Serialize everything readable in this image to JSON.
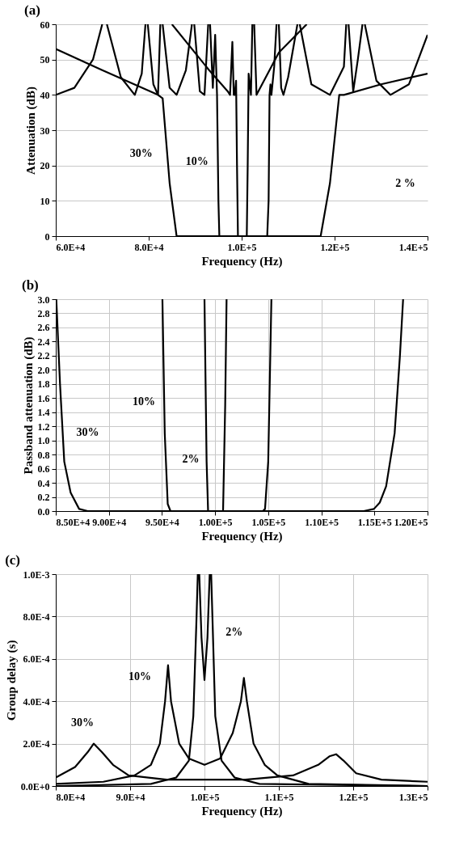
{
  "chart_data": [
    {
      "type": "line",
      "title": "(a)",
      "xlabel": "Frequency (Hz)",
      "ylabel": "Attenuation (dB)",
      "xlim": [
        60000,
        140000
      ],
      "ylim": [
        0,
        60
      ],
      "xticks": [
        {
          "value": 60000,
          "label": "6.0E+4"
        },
        {
          "value": 80000,
          "label": "8.0E+4"
        },
        {
          "value": 100000,
          "label": "1.0E+5"
        },
        {
          "value": 120000,
          "label": "1.2E+5"
        },
        {
          "value": 140000,
          "label": "1.4E+5"
        }
      ],
      "yticks": [
        0,
        10,
        20,
        30,
        40,
        50,
        60
      ],
      "grid": "y",
      "series": [
        {
          "color": "#000000",
          "x": [
            60000,
            70000,
            82000,
            83000,
            84500,
            86000,
            117000,
            119000,
            121000,
            122000,
            130000,
            140000
          ],
          "values": [
            53,
            47,
            40,
            39,
            15,
            0,
            0,
            15,
            40,
            40,
            43,
            46
          ]
        },
        {
          "color": "#000000",
          "x": [
            60000,
            64000,
            68000,
            70000,
            70500,
            71000,
            74000,
            77000,
            78500,
            79300,
            79500,
            79800,
            81000,
            82000,
            82500,
            82700,
            83000,
            84500,
            86000,
            88000,
            89300,
            89500,
            89800,
            91000,
            92000,
            92800,
            93000,
            93200,
            93800,
            94300,
            94700,
            95000,
            95200,
            105500,
            105800,
            106000,
            106200,
            106400,
            107000,
            107500,
            107700,
            108000,
            108500,
            109000,
            110000,
            112000,
            112200,
            112500,
            115000,
            119000,
            122000,
            122500,
            122700,
            123000,
            124000,
            125000,
            126000,
            126200,
            126500,
            129000,
            132000,
            136000,
            140000
          ],
          "values": [
            40,
            42,
            50,
            60,
            null,
            60,
            45,
            40,
            46,
            60,
            null,
            60,
            43,
            40,
            60,
            null,
            60,
            42,
            40,
            47,
            60,
            null,
            60,
            41,
            40,
            60,
            null,
            60,
            42,
            57,
            40,
            10,
            0,
            0,
            10,
            40,
            43,
            40,
            48,
            60,
            null,
            60,
            42,
            40,
            45,
            60,
            null,
            60,
            43,
            40,
            48,
            60,
            null,
            60,
            41,
            50,
            60,
            null,
            60,
            44,
            40,
            43,
            57
          ]
        },
        {
          "color": "#000000",
          "x": [
            85000,
            93000,
            97000,
            97500,
            98000,
            98300,
            98500,
            98800,
            99000,
            99200,
            101100,
            101300,
            101500,
            102000,
            102300,
            102500,
            102700,
            103200,
            108000,
            114000
          ],
          "values": [
            60,
            47,
            41,
            40,
            55,
            40,
            40,
            44,
            20,
            0,
            0,
            20,
            46,
            40,
            60,
            null,
            60,
            40,
            52,
            60
          ]
        }
      ],
      "annotations": [
        "30%",
        "10%",
        "2 %"
      ]
    },
    {
      "type": "line",
      "title": "(b)",
      "xlabel": "Frequency (Hz)",
      "ylabel": "Passband attenuation (dB)",
      "xlim": [
        85000,
        120000
      ],
      "ylim": [
        0,
        3
      ],
      "xticks": [
        {
          "value": 85000,
          "label": "8.50E+4"
        },
        {
          "value": 90000,
          "label": "9.00E+4"
        },
        {
          "value": 95000,
          "label": "9.50E+4"
        },
        {
          "value": 100000,
          "label": "1.00E+5"
        },
        {
          "value": 105000,
          "label": "1.05E+5"
        },
        {
          "value": 110000,
          "label": "1.10E+5"
        },
        {
          "value": 115000,
          "label": "1.15E+5"
        },
        {
          "value": 120000,
          "label": "1.20E+5"
        }
      ],
      "yticks": [
        {
          "value": 0,
          "label": "0.0"
        },
        0.2,
        0.4,
        0.6,
        0.8,
        {
          "value": 1,
          "label": "1.0"
        },
        1.2,
        1.4,
        1.6,
        1.8,
        {
          "value": 2,
          "label": "2.0"
        },
        2.2,
        2.4,
        2.6,
        2.8,
        {
          "value": 3,
          "label": "3.0"
        }
      ],
      "grid": true,
      "series": [
        {
          "color": "#000000",
          "x": [
            85050,
            85400,
            85800,
            86400,
            87200,
            88000,
            100000,
            114000,
            114950,
            115500,
            116100,
            116900,
            117400,
            117700
          ],
          "values": [
            3.0,
            1.8,
            0.7,
            0.26,
            0.03,
            0,
            0,
            0,
            0.03,
            0.12,
            0.35,
            1.1,
            2.2,
            3.0
          ]
        },
        {
          "color": "#000000",
          "x": [
            95040,
            95260,
            95540,
            95800,
            104500,
            104700,
            105000,
            105300
          ],
          "values": [
            3.0,
            1.1,
            0.1,
            0,
            0,
            0.03,
            0.7,
            3.0
          ]
        },
        {
          "color": "#000000",
          "x": [
            99000,
            99200,
            99340,
            100750,
            100950,
            101080
          ],
          "values": [
            3.0,
            0.7,
            0,
            0,
            1.5,
            3.0
          ]
        }
      ],
      "annotations": [
        "30%",
        "10%",
        "2%"
      ]
    },
    {
      "type": "line",
      "title": "(c)",
      "xlabel": "Frequency (Hz)",
      "ylabel": "Group delay (s)",
      "xlim": [
        80000,
        130000
      ],
      "ylim": [
        0,
        0.001
      ],
      "xticks": [
        {
          "value": 80000,
          "label": "8.0E+4"
        },
        {
          "value": 90000,
          "label": "9.0E+4"
        },
        {
          "value": 100000,
          "label": "1.0E+5"
        },
        {
          "value": 110000,
          "label": "1.1E+5"
        },
        {
          "value": 120000,
          "label": "1.2E+5"
        },
        {
          "value": 130000,
          "label": "1.3E+5"
        }
      ],
      "yticks": [
        {
          "value": 0,
          "label": "0.0E+0"
        },
        {
          "value": 0.0002,
          "label": "2.0E-4"
        },
        {
          "value": 0.0004,
          "label": "4.0E-4"
        },
        {
          "value": 0.0006,
          "label": "6.0E-4"
        },
        {
          "value": 0.0008,
          "label": "8.0E-4"
        },
        {
          "value": 0.001,
          "label": "1.0E-3"
        }
      ],
      "grid": true,
      "series": [
        {
          "color": "#000000",
          "x": [
            80000,
            82600,
            84300,
            85100,
            86200,
            87700,
            89800,
            94900,
            100000,
            105500,
            111900,
            115300,
            116800,
            117700,
            118700,
            120400,
            123800,
            130000
          ],
          "values": [
            4e-05,
            9e-05,
            0.00016,
            0.0002,
            0.00016,
            0.0001,
            5e-05,
            3e-05,
            3e-05,
            3e-05,
            5e-05,
            0.0001,
            0.00014,
            0.00015,
            0.00012,
            6e-05,
            3e-05,
            2e-05
          ]
        },
        {
          "color": "#000000",
          "x": [
            80000,
            86400,
            90600,
            92800,
            94000,
            94700,
            95100,
            95500,
            96600,
            97900,
            100000,
            102100,
            103800,
            104900,
            105300,
            105700,
            106600,
            108100,
            109800,
            114000,
            130000
          ],
          "values": [
            1e-05,
            2e-05,
            5e-05,
            0.0001,
            0.0002,
            0.0004,
            0.00057,
            0.0004,
            0.0002,
            0.00013,
            0.0001,
            0.00013,
            0.00025,
            0.0004,
            0.00051,
            0.0004,
            0.0002,
            0.0001,
            5e-05,
            1e-05,
            0
          ]
        },
        {
          "color": "#000000",
          "x": [
            80000,
            92800,
            96200,
            97900,
            98500,
            98900,
            99100,
            99200,
            99300,
            99600,
            100000,
            100400,
            100700,
            100800,
            100900,
            101100,
            101450,
            102300,
            104050,
            107400,
            130000
          ],
          "values": [
            0,
            1e-05,
            4e-05,
            0.00012,
            0.00033,
            0.00076,
            0.001,
            null,
            0.001,
            0.0007,
            0.0005,
            0.0007,
            0.001,
            null,
            0.001,
            0.00076,
            0.00033,
            0.00012,
            4e-05,
            1e-05,
            0
          ]
        }
      ],
      "annotations": [
        "30%",
        "10%",
        "2%"
      ]
    }
  ]
}
